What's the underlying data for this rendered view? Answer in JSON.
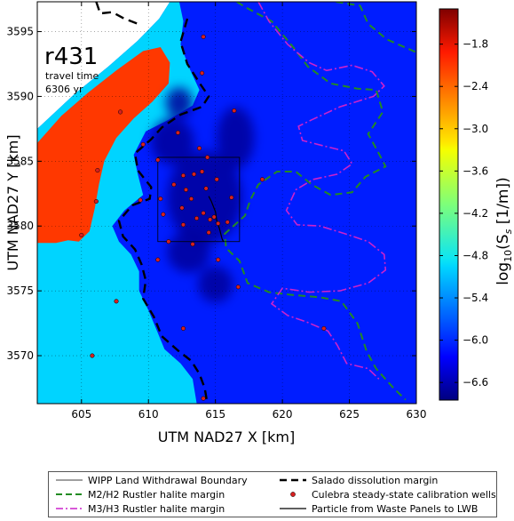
{
  "chart_data": {
    "type": "heatmap",
    "title": "",
    "annotation": {
      "model": "r431",
      "line1": "travel time",
      "line2": "6306 yr"
    },
    "xlabel": "UTM NAD27 X [km]",
    "ylabel": "UTM NAD27 Y [km]",
    "xlim": [
      601.7,
      630.0
    ],
    "ylim": [
      3566.3,
      3597.3
    ],
    "x_ticks": [
      605,
      610,
      615,
      620,
      625,
      630
    ],
    "y_ticks": [
      3570,
      3575,
      3580,
      3585,
      3590,
      3595
    ],
    "grid": true,
    "colorbar": {
      "label": "log10(Ss [1/m])",
      "label_prefix": "log",
      "label_sub": "10",
      "label_body": "(S",
      "label_s_sub": "s",
      "label_tail": " [1/m])",
      "range": [
        -6.85,
        -1.3
      ],
      "ticks": [
        -1.8,
        -2.4,
        -3.0,
        -3.6,
        -4.2,
        -4.8,
        -5.4,
        -6.0,
        -6.6
      ],
      "tick_labels": [
        "−1.8",
        "−2.4",
        "−3.0",
        "−3.6",
        "−4.2",
        "−4.8",
        "−5.4",
        "−6.0",
        "−6.6"
      ],
      "colormap": "jet"
    },
    "fields": {
      "background": -6.0,
      "orange_zone": -2.3,
      "cyan_zone": -5.0,
      "core_low": -6.7
    },
    "wipp_boundary": {
      "x": [
        610.7,
        616.8
      ],
      "y": [
        3578.8,
        3585.3
      ]
    },
    "wells": [
      [
        614.1,
        3594.6
      ],
      [
        614.0,
        3591.8
      ],
      [
        607.9,
        3588.8
      ],
      [
        616.4,
        3588.9
      ],
      [
        612.2,
        3587.2
      ],
      [
        609.6,
        3586.3
      ],
      [
        613.8,
        3586.0
      ],
      [
        610.7,
        3585.1
      ],
      [
        614.4,
        3585.3
      ],
      [
        606.2,
        3584.3
      ],
      [
        613.4,
        3584.0
      ],
      [
        614.0,
        3584.2
      ],
      [
        612.6,
        3583.9
      ],
      [
        615.1,
        3583.6
      ],
      [
        618.5,
        3583.6
      ],
      [
        611.9,
        3583.2
      ],
      [
        612.8,
        3582.8
      ],
      [
        614.3,
        3582.9
      ],
      [
        606.1,
        3581.9
      ],
      [
        609.4,
        3582.0
      ],
      [
        610.9,
        3582.1
      ],
      [
        613.2,
        3582.1
      ],
      [
        616.2,
        3582.2
      ],
      [
        612.5,
        3581.4
      ],
      [
        614.1,
        3581.0
      ],
      [
        611.1,
        3580.9
      ],
      [
        613.6,
        3580.6
      ],
      [
        614.9,
        3580.7
      ],
      [
        612.6,
        3580.1
      ],
      [
        614.6,
        3580.5
      ],
      [
        615.2,
        3580.2
      ],
      [
        615.9,
        3580.3
      ],
      [
        614.5,
        3579.5
      ],
      [
        611.5,
        3578.8
      ],
      [
        613.3,
        3578.6
      ],
      [
        605.0,
        3579.3
      ],
      [
        610.7,
        3577.4
      ],
      [
        615.2,
        3577.4
      ],
      [
        616.7,
        3575.3
      ],
      [
        607.6,
        3574.2
      ],
      [
        612.6,
        3572.1
      ],
      [
        623.1,
        3572.1
      ],
      [
        605.8,
        3570.0
      ],
      [
        614.1,
        3566.7
      ]
    ],
    "legend": [
      "WIPP Land Withdrawal Boundary",
      "Salado dissolution margin",
      "M2/H2 Rustler halite margin",
      "Culebra steady-state calibration wells",
      "M3/H3 Rustler halite margin",
      "Particle from Waste Panels to LWB"
    ],
    "legend_placement": "below",
    "colors": {
      "salado": "#000000",
      "m2h2": "#228b22",
      "m3h3": "#cc22cc",
      "well": "#d62020",
      "particle": "#000000",
      "boundary": "#000000"
    }
  }
}
